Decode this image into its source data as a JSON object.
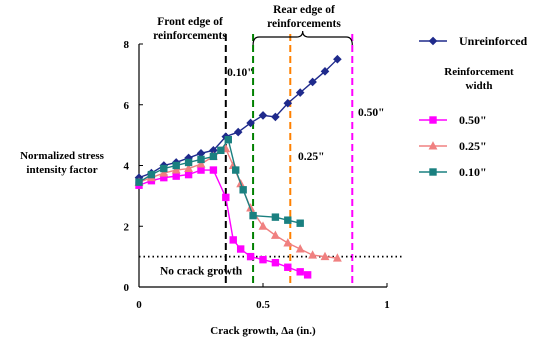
{
  "chart_data": {
    "type": "line",
    "xlabel": "Crack growth, Δa (in.)",
    "ylabel_lines": [
      "Normalized stress",
      "intensity factor"
    ],
    "xlim": [
      0,
      1
    ],
    "ylim": [
      0,
      8
    ],
    "x_ticks": [
      "0",
      "0.5",
      "1"
    ],
    "y_ticks": [
      "0",
      "2",
      "4",
      "6",
      "8"
    ],
    "grid": false,
    "legend_position": "right",
    "legend_subtitle_lines": [
      "Reinforcement",
      "width"
    ],
    "series": [
      {
        "name": "Unreinforced",
        "color": "#1f2a8c",
        "marker": "diamond",
        "points": [
          [
            0,
            3.6
          ],
          [
            0.05,
            3.75
          ],
          [
            0.1,
            4.0
          ],
          [
            0.15,
            4.1
          ],
          [
            0.2,
            4.25
          ],
          [
            0.25,
            4.4
          ],
          [
            0.3,
            4.5
          ],
          [
            0.35,
            4.95
          ],
          [
            0.4,
            5.1
          ],
          [
            0.45,
            5.4
          ],
          [
            0.5,
            5.65
          ],
          [
            0.55,
            5.6
          ],
          [
            0.6,
            6.05
          ],
          [
            0.65,
            6.4
          ],
          [
            0.7,
            6.75
          ],
          [
            0.75,
            7.1
          ],
          [
            0.8,
            7.5
          ]
        ]
      },
      {
        "name": "0.50\"",
        "color": "#ff00ff",
        "marker": "square",
        "points": [
          [
            0,
            3.35
          ],
          [
            0.05,
            3.5
          ],
          [
            0.1,
            3.6
          ],
          [
            0.15,
            3.65
          ],
          [
            0.2,
            3.7
          ],
          [
            0.25,
            3.85
          ],
          [
            0.3,
            3.85
          ],
          [
            0.35,
            2.95
          ],
          [
            0.38,
            1.55
          ],
          [
            0.41,
            1.25
          ],
          [
            0.45,
            1.0
          ],
          [
            0.5,
            0.9
          ],
          [
            0.55,
            0.8
          ],
          [
            0.6,
            0.65
          ],
          [
            0.65,
            0.5
          ],
          [
            0.68,
            0.4
          ]
        ]
      },
      {
        "name": "0.25\"",
        "color": "#f08080",
        "marker": "triangle",
        "points": [
          [
            0,
            3.45
          ],
          [
            0.05,
            3.6
          ],
          [
            0.1,
            3.75
          ],
          [
            0.15,
            3.85
          ],
          [
            0.2,
            3.9
          ],
          [
            0.25,
            4.05
          ],
          [
            0.3,
            4.3
          ],
          [
            0.35,
            4.55
          ],
          [
            0.38,
            4.0
          ],
          [
            0.41,
            3.4
          ],
          [
            0.45,
            2.6
          ],
          [
            0.5,
            2.0
          ],
          [
            0.55,
            1.7
          ],
          [
            0.6,
            1.45
          ],
          [
            0.65,
            1.25
          ],
          [
            0.7,
            1.05
          ],
          [
            0.75,
            1.0
          ],
          [
            0.8,
            0.95
          ]
        ]
      },
      {
        "name": "0.10\"",
        "color": "#1a8080",
        "marker": "square",
        "points": [
          [
            0,
            3.45
          ],
          [
            0.05,
            3.7
          ],
          [
            0.1,
            3.9
          ],
          [
            0.15,
            4.0
          ],
          [
            0.2,
            4.1
          ],
          [
            0.25,
            4.2
          ],
          [
            0.3,
            4.3
          ],
          [
            0.33,
            4.5
          ],
          [
            0.36,
            4.85
          ],
          [
            0.39,
            3.85
          ],
          [
            0.42,
            3.2
          ],
          [
            0.46,
            2.35
          ],
          [
            0.55,
            2.3
          ],
          [
            0.6,
            2.2
          ],
          [
            0.65,
            2.1
          ]
        ]
      }
    ],
    "vertical_lines": [
      {
        "x": 0.35,
        "color": "#000000",
        "label": "Front edge of reinforcements",
        "label_lines": [
          "Front edge of",
          "reinforcements"
        ]
      },
      {
        "x": 0.46,
        "color": "#008000",
        "label": "0.10\""
      },
      {
        "x": 0.61,
        "color": "#ff8000",
        "label": "0.25\""
      },
      {
        "x": 0.86,
        "color": "#ff00ff",
        "label": "0.50\""
      }
    ],
    "horizontal_line": {
      "y": 1.0,
      "label": "No crack growth"
    },
    "rear_edge_label_lines": [
      "Rear edge of",
      "reinforcements"
    ]
  }
}
